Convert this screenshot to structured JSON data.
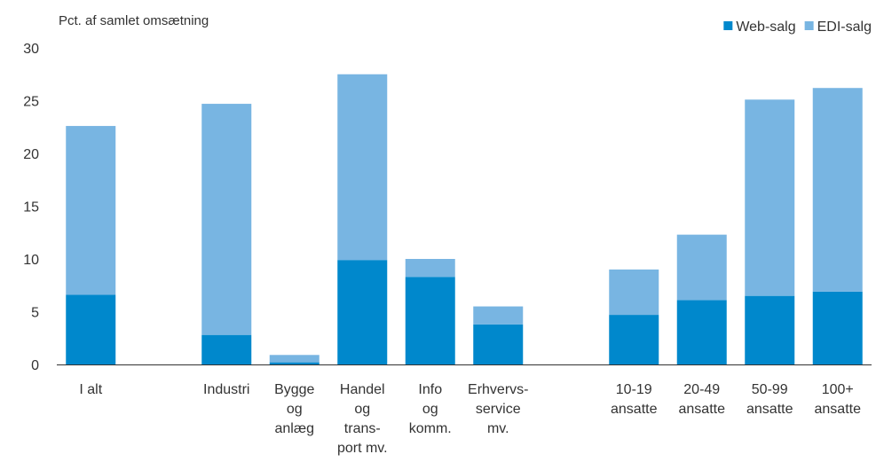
{
  "chart_data": {
    "type": "bar",
    "stacked": true,
    "ylabel": "Pct. af samlet omsætning",
    "ylim": [
      0,
      30
    ],
    "yticks": [
      0,
      5,
      10,
      15,
      20,
      25,
      30
    ],
    "grid": false,
    "legend_position": "top-right",
    "categories": [
      [
        "I alt"
      ],
      [],
      [
        "Industri"
      ],
      [
        "Bygge",
        "og",
        "anlæg"
      ],
      [
        "Handel",
        "og",
        "trans-",
        "port mv."
      ],
      [
        "Info",
        "og",
        "komm."
      ],
      [
        "Erhvervs-",
        "service",
        "mv."
      ],
      [],
      [
        "10-19",
        "ansatte"
      ],
      [
        "20-49",
        "ansatte"
      ],
      [
        "50-99",
        "ansatte"
      ],
      [
        "100+",
        "ansatte"
      ]
    ],
    "series": [
      {
        "name": "Web-salg",
        "color": "#0088cc",
        "values": [
          6.6,
          null,
          2.8,
          0.2,
          9.9,
          8.3,
          3.8,
          null,
          4.7,
          6.1,
          6.5,
          6.9
        ]
      },
      {
        "name": "EDI-salg",
        "color": "#78b5e2",
        "values": [
          16.0,
          null,
          21.9,
          0.7,
          17.6,
          1.7,
          1.7,
          null,
          4.3,
          6.2,
          18.6,
          19.3
        ]
      }
    ]
  }
}
